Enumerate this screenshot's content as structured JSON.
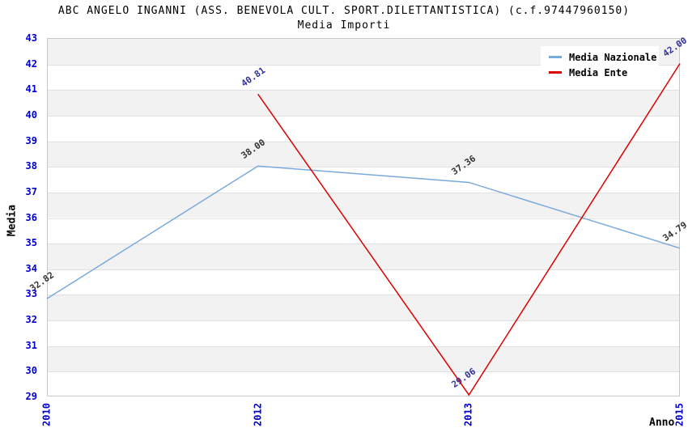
{
  "title": "ABC ANGELO INGANNI (ASS. BENEVOLA CULT. SPORT.DILETTANTISTICA) (c.f.97447960150)",
  "subtitle": "Media Importi",
  "chart_data": {
    "type": "line",
    "categories": [
      "2010",
      "2012",
      "2013",
      "2015"
    ],
    "series": [
      {
        "name": "Media Nazionale",
        "color": "#7aa9dc",
        "label_color": "#333333",
        "values": [
          32.82,
          38.0,
          37.36,
          34.79
        ]
      },
      {
        "name": "Media Ente",
        "color": "#dd0000",
        "label_color": "#333399",
        "values": [
          null,
          40.81,
          29.06,
          42.0
        ]
      }
    ],
    "xlabel": "Anno",
    "ylabel": "Media",
    "ylim": [
      29,
      43
    ],
    "y_tick_step": 1,
    "x_spacing": "equal-categorical",
    "grid": "horizontal alternating bands",
    "legend_position": "top-right",
    "point_labels_visible": true,
    "colors": {
      "tick_label": "#0000cc",
      "band_fill": "#f2f2f2",
      "gridline": "#e0e0e0",
      "plot_border": "#c8c8c8",
      "title_text": "#000000"
    }
  }
}
